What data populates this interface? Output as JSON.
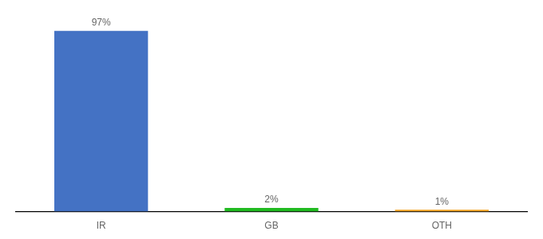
{
  "chart_data": {
    "type": "bar",
    "categories": [
      "IR",
      "GB",
      "OTH"
    ],
    "values": [
      97,
      2,
      1
    ],
    "value_labels": [
      "97%",
      "2%",
      "1%"
    ],
    "colors": [
      "#4472c4",
      "#22bb22",
      "#f5a623"
    ],
    "ylim": [
      0,
      105
    ],
    "grid": false,
    "data_labels": true,
    "tick_labels": "x"
  }
}
